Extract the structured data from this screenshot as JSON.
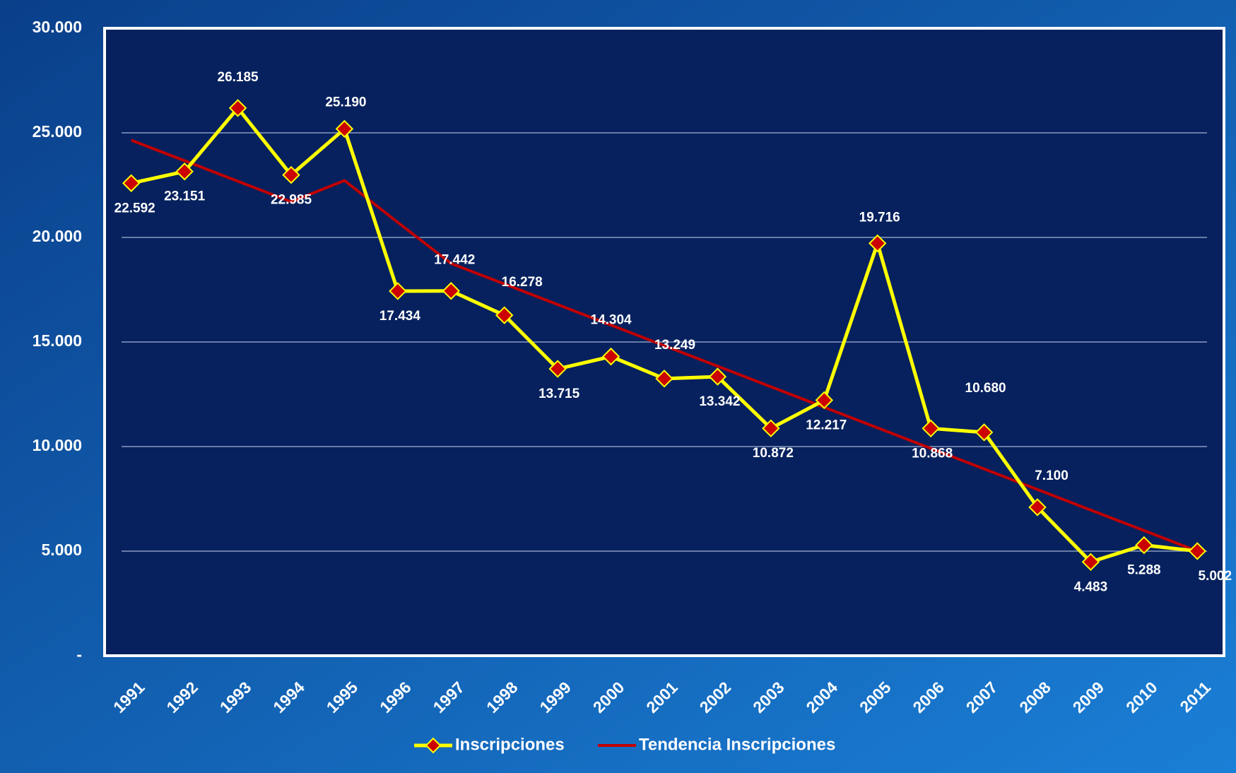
{
  "chart_data": {
    "type": "line",
    "categories": [
      "1991",
      "1992",
      "1993",
      "1994",
      "1995",
      "1996",
      "1997",
      "1998",
      "1999",
      "2000",
      "2001",
      "2002",
      "2003",
      "2004",
      "2005",
      "2006",
      "2007",
      "2008",
      "2009",
      "2010",
      "2011"
    ],
    "series": [
      {
        "name": "Inscripciones",
        "color": "#ffff00",
        "marker_color": "#cc0000",
        "values": [
          22592,
          23151,
          26185,
          22985,
          25190,
          17434,
          17442,
          16278,
          13715,
          14304,
          13249,
          13342,
          10872,
          12217,
          19716,
          10868,
          10680,
          7100,
          4483,
          5288,
          5002
        ],
        "value_labels": [
          "22.592",
          "23.151",
          "26.185",
          "22.985",
          "25.190",
          "17.434",
          "17.442",
          "16.278",
          "13.715",
          "14.304",
          "13.249",
          "13.342",
          "10.872",
          "12.217",
          "19.716",
          "10.868",
          "10.680",
          "7.100",
          "4.483",
          "5.288",
          "5.002"
        ]
      },
      {
        "name": "Tendencia Inscripciones",
        "color": "#c00000",
        "values": [
          24650,
          23668,
          22685,
          21703,
          22720,
          20720,
          18755,
          17773,
          16790,
          15808,
          14825,
          13843,
          12860,
          11878,
          10895,
          9913,
          8930,
          7948,
          6965,
          5983,
          5000
        ]
      }
    ],
    "ylim": [
      0,
      30000
    ],
    "yticks": [
      {
        "value": 0,
        "label": "-"
      },
      {
        "value": 5000,
        "label": "5.000"
      },
      {
        "value": 10000,
        "label": "10.000"
      },
      {
        "value": 15000,
        "label": "15.000"
      },
      {
        "value": 20000,
        "label": "20.000"
      },
      {
        "value": 25000,
        "label": "25.000"
      },
      {
        "value": 30000,
        "label": "30.000"
      }
    ],
    "grid": true,
    "legend": "bottom"
  }
}
